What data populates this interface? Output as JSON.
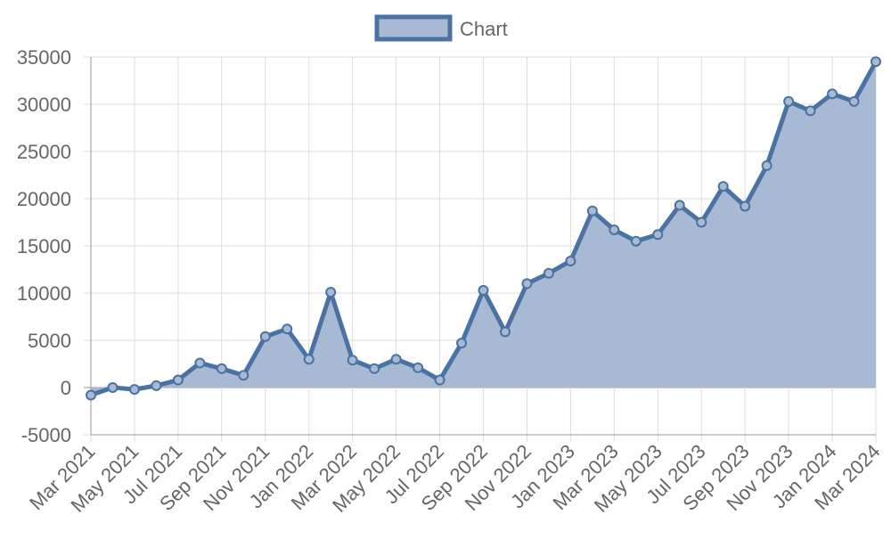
{
  "chart_data": {
    "type": "area",
    "legend": {
      "label": "Chart",
      "position": "top-center"
    },
    "colors": {
      "line": "#4a72a2",
      "fill": "#a8bad3",
      "grid": "#dddddd",
      "axis": "#999999",
      "text": "#666666",
      "zero_line": "#999999"
    },
    "grid": true,
    "ylim": [
      -5000,
      35000
    ],
    "yticks": [
      35000,
      30000,
      25000,
      20000,
      15000,
      10000,
      5000,
      0,
      -5000
    ],
    "x_tick_labels": [
      "Mar 2021",
      "May 2021",
      "Jul 2021",
      "Sep 2021",
      "Nov 2021",
      "Jan 2022",
      "Mar 2022",
      "May 2022",
      "Jul 2022",
      "Sep 2022",
      "Nov 2022",
      "Jan 2023",
      "Mar 2023",
      "May 2023",
      "Jul 2023",
      "Sep 2023",
      "Nov 2023",
      "Jan 2024",
      "Mar 2024"
    ],
    "x": [
      "Mar 2021",
      "Apr 2021",
      "May 2021",
      "Jun 2021",
      "Jul 2021",
      "Aug 2021",
      "Sep 2021",
      "Oct 2021",
      "Nov 2021",
      "Dec 2021",
      "Jan 2022",
      "Feb 2022",
      "Mar 2022",
      "Apr 2022",
      "May 2022",
      "Jun 2022",
      "Jul 2022",
      "Aug 2022",
      "Sep 2022",
      "Oct 2022",
      "Nov 2022",
      "Dec 2022",
      "Jan 2023",
      "Feb 2023",
      "Mar 2023",
      "Apr 2023",
      "May 2023",
      "Jun 2023",
      "Jul 2023",
      "Aug 2023",
      "Sep 2023",
      "Oct 2023",
      "Nov 2023",
      "Dec 2023",
      "Jan 2024",
      "Feb 2024",
      "Mar 2024"
    ],
    "series": [
      {
        "name": "Chart",
        "values": [
          -800,
          0,
          -200,
          200,
          800,
          2600,
          2000,
          1300,
          5400,
          6200,
          3000,
          10100,
          2900,
          2000,
          3000,
          2100,
          800,
          4700,
          10300,
          5900,
          11000,
          12100,
          13400,
          18700,
          16700,
          15500,
          16200,
          19300,
          17500,
          21300,
          19200,
          23500,
          30300,
          29300,
          31100,
          30300,
          34500
        ]
      }
    ]
  }
}
